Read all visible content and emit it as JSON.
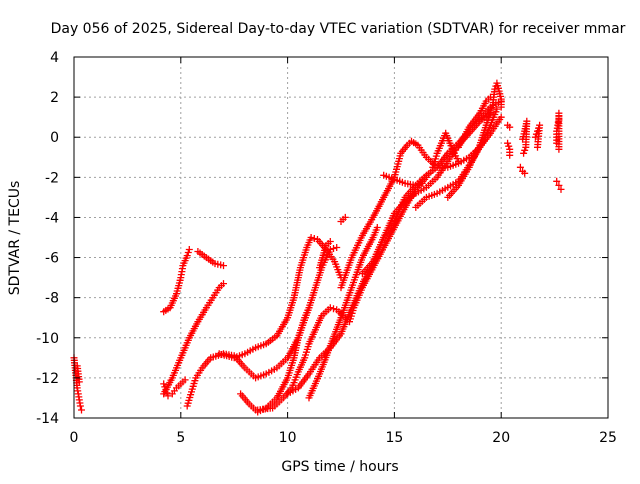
{
  "chart_data": {
    "type": "scatter",
    "title": "Day 056 of 2025, Sidereal Day-to-day VTEC variation (SDTVAR) for receiver mmar",
    "xlabel": "GPS time / hours",
    "ylabel": "SDTVAR / TECUs",
    "xlim": [
      0,
      25
    ],
    "ylim": [
      -14,
      4
    ],
    "xticks": [
      "0",
      "5",
      "10",
      "15",
      "20",
      "25"
    ],
    "yticks": [
      "4",
      "2",
      "0",
      "-2",
      "-4",
      "-6",
      "-8",
      "-10",
      "-12",
      "-14"
    ],
    "grid": true,
    "marker": "plus",
    "color": "#ff0000",
    "series": [
      {
        "points": [
          [
            0.0,
            -11.0
          ],
          [
            0.05,
            -11.5
          ],
          [
            0.1,
            -12.0
          ],
          [
            0.15,
            -12.5
          ],
          [
            0.2,
            -12.8
          ],
          [
            0.25,
            -13.1
          ],
          [
            0.3,
            -13.4
          ],
          [
            0.35,
            -13.6
          ],
          [
            0.15,
            -11.4
          ],
          [
            0.25,
            -12.2
          ]
        ]
      },
      {
        "points": [
          [
            4.2,
            -8.7
          ],
          [
            4.5,
            -8.5
          ],
          [
            4.8,
            -7.8
          ],
          [
            5.0,
            -7.0
          ],
          [
            5.1,
            -6.4
          ],
          [
            5.3,
            -5.9
          ],
          [
            5.4,
            -5.6
          ]
        ]
      },
      {
        "points": [
          [
            4.2,
            -12.3
          ],
          [
            4.3,
            -12.6
          ],
          [
            4.4,
            -12.9
          ],
          [
            4.6,
            -12.8
          ],
          [
            4.8,
            -12.5
          ],
          [
            5.0,
            -12.3
          ],
          [
            5.2,
            -12.1
          ]
        ]
      },
      {
        "points": [
          [
            5.3,
            -13.4
          ],
          [
            5.5,
            -12.7
          ],
          [
            5.7,
            -12.0
          ],
          [
            6.0,
            -11.5
          ],
          [
            6.4,
            -11.0
          ],
          [
            7.0,
            -10.8
          ],
          [
            7.5,
            -10.9
          ],
          [
            8.0,
            -11.5
          ],
          [
            8.5,
            -12.0
          ],
          [
            9.0,
            -11.8
          ],
          [
            9.5,
            -11.5
          ],
          [
            10.0,
            -11.0
          ],
          [
            10.5,
            -10.0
          ],
          [
            11.0,
            -8.5
          ],
          [
            11.5,
            -6.5
          ],
          [
            11.8,
            -5.4
          ],
          [
            12.0,
            -5.2
          ]
        ]
      },
      {
        "points": [
          [
            4.2,
            -12.8
          ],
          [
            4.6,
            -12.0
          ],
          [
            5.0,
            -11.0
          ],
          [
            5.4,
            -10.0
          ],
          [
            5.8,
            -9.2
          ],
          [
            6.2,
            -8.5
          ],
          [
            6.5,
            -8.0
          ],
          [
            6.8,
            -7.5
          ],
          [
            7.0,
            -7.3
          ]
        ]
      },
      {
        "points": [
          [
            5.8,
            -5.7
          ],
          [
            6.2,
            -6.0
          ],
          [
            6.6,
            -6.3
          ],
          [
            7.0,
            -6.4
          ]
        ]
      },
      {
        "points": [
          [
            6.8,
            -10.8
          ],
          [
            7.5,
            -11.0
          ],
          [
            8.0,
            -10.8
          ],
          [
            8.5,
            -10.5
          ],
          [
            9.0,
            -10.3
          ],
          [
            9.5,
            -9.9
          ],
          [
            10.0,
            -9.0
          ],
          [
            10.3,
            -8.0
          ],
          [
            10.6,
            -6.5
          ],
          [
            10.9,
            -5.5
          ],
          [
            11.1,
            -5.0
          ],
          [
            11.4,
            -5.1
          ],
          [
            11.8,
            -5.6
          ],
          [
            12.2,
            -6.2
          ],
          [
            12.5,
            -7.0
          ]
        ]
      },
      {
        "points": [
          [
            7.8,
            -12.8
          ],
          [
            8.2,
            -13.3
          ],
          [
            8.6,
            -13.7
          ],
          [
            9.0,
            -13.5
          ],
          [
            9.5,
            -13.0
          ],
          [
            10.0,
            -12.0
          ],
          [
            10.3,
            -11.0
          ],
          [
            10.5,
            -10.0
          ],
          [
            10.8,
            -9.0
          ],
          [
            11.0,
            -8.5
          ],
          [
            11.3,
            -7.5
          ],
          [
            11.6,
            -6.5
          ],
          [
            12.0,
            -5.6
          ],
          [
            12.3,
            -5.5
          ]
        ]
      },
      {
        "points": [
          [
            8.6,
            -13.6
          ],
          [
            9.3,
            -13.5
          ],
          [
            9.8,
            -13.0
          ],
          [
            10.2,
            -12.5
          ],
          [
            10.5,
            -11.7
          ],
          [
            10.8,
            -11.0
          ],
          [
            11.0,
            -10.3
          ],
          [
            11.3,
            -9.6
          ],
          [
            11.6,
            -8.9
          ],
          [
            12.0,
            -8.5
          ],
          [
            12.3,
            -8.6
          ],
          [
            12.6,
            -8.9
          ],
          [
            12.9,
            -9.2
          ],
          [
            13.1,
            -8.5
          ],
          [
            13.5,
            -7.5
          ],
          [
            14.0,
            -6.5
          ],
          [
            14.5,
            -5.5
          ],
          [
            15.0,
            -4.5
          ],
          [
            15.5,
            -3.5
          ],
          [
            16.0,
            -2.6
          ],
          [
            16.5,
            -2.0
          ]
        ]
      },
      {
        "points": [
          [
            10.0,
            -12.8
          ],
          [
            10.5,
            -12.5
          ],
          [
            11.0,
            -11.8
          ],
          [
            11.5,
            -11.0
          ],
          [
            12.0,
            -10.5
          ],
          [
            12.5,
            -9.8
          ],
          [
            13.0,
            -8.5
          ],
          [
            13.5,
            -7.3
          ],
          [
            14.0,
            -6.3
          ],
          [
            14.5,
            -5.0
          ],
          [
            15.0,
            -4.2
          ],
          [
            15.5,
            -3.0
          ],
          [
            16.0,
            -2.4
          ],
          [
            16.5,
            -1.9
          ],
          [
            17.0,
            -1.5
          ],
          [
            17.5,
            -0.8
          ],
          [
            18.0,
            -0.3
          ],
          [
            18.5,
            0.3
          ],
          [
            19.0,
            0.9
          ],
          [
            19.5,
            1.5
          ],
          [
            20.0,
            1.8
          ]
        ]
      },
      {
        "points": [
          [
            11.0,
            -13.0
          ],
          [
            11.5,
            -11.8
          ],
          [
            12.0,
            -10.4
          ],
          [
            12.5,
            -9.0
          ],
          [
            13.0,
            -7.5
          ],
          [
            13.3,
            -6.6
          ],
          [
            13.5,
            -6.0
          ],
          [
            14.0,
            -5.0
          ],
          [
            14.2,
            -4.5
          ]
        ]
      },
      {
        "points": [
          [
            12.5,
            -4.2
          ],
          [
            12.7,
            -4.0
          ]
        ]
      },
      {
        "points": [
          [
            12.5,
            -7.5
          ],
          [
            13.0,
            -6.0
          ],
          [
            13.5,
            -4.9
          ],
          [
            14.0,
            -4.0
          ],
          [
            14.5,
            -3.0
          ],
          [
            15.0,
            -2.0
          ],
          [
            15.3,
            -0.8
          ],
          [
            15.6,
            -0.4
          ],
          [
            15.8,
            -0.2
          ],
          [
            16.1,
            -0.4
          ],
          [
            16.5,
            -1.0
          ],
          [
            17.0,
            -1.5
          ],
          [
            17.5,
            -1.5
          ],
          [
            18.0,
            -1.3
          ],
          [
            18.5,
            -1.0
          ],
          [
            19.0,
            -0.5
          ],
          [
            19.5,
            0.2
          ],
          [
            20.0,
            1.0
          ]
        ]
      },
      {
        "points": [
          [
            14.5,
            -1.9
          ],
          [
            15.0,
            -2.1
          ],
          [
            15.5,
            -2.3
          ],
          [
            16.0,
            -2.4
          ],
          [
            16.3,
            -2.3
          ]
        ]
      },
      {
        "points": [
          [
            13.5,
            -6.8
          ],
          [
            14.0,
            -6.2
          ],
          [
            14.5,
            -5.0
          ],
          [
            15.0,
            -3.8
          ],
          [
            15.5,
            -3.2
          ],
          [
            16.0,
            -2.8
          ],
          [
            16.5,
            -2.5
          ],
          [
            17.0,
            -2.0
          ],
          [
            17.5,
            -1.2
          ],
          [
            18.0,
            -0.4
          ],
          [
            18.5,
            0.2
          ],
          [
            19.0,
            0.8
          ],
          [
            19.5,
            1.2
          ]
        ]
      },
      {
        "points": [
          [
            16.0,
            -3.5
          ],
          [
            16.5,
            -3.0
          ],
          [
            17.0,
            -2.8
          ],
          [
            17.5,
            -2.5
          ],
          [
            18.0,
            -2.2
          ],
          [
            18.5,
            -1.4
          ],
          [
            19.0,
            -0.5
          ],
          [
            19.5,
            0.6
          ],
          [
            19.8,
            1.4
          ]
        ]
      },
      {
        "points": [
          [
            16.8,
            -1.5
          ],
          [
            17.0,
            -0.8
          ],
          [
            17.2,
            -0.3
          ],
          [
            17.4,
            0.2
          ],
          [
            17.6,
            -0.3
          ],
          [
            17.8,
            -0.8
          ],
          [
            18.0,
            -1.2
          ]
        ]
      },
      {
        "points": [
          [
            17.5,
            -3.0
          ],
          [
            18.0,
            -2.4
          ],
          [
            18.5,
            -1.5
          ],
          [
            19.0,
            -0.4
          ],
          [
            19.3,
            0.6
          ],
          [
            19.6,
            1.6
          ],
          [
            19.7,
            2.4
          ],
          [
            19.8,
            2.7
          ],
          [
            19.9,
            2.3
          ],
          [
            20.0,
            1.9
          ],
          [
            20.0,
            1.5
          ]
        ]
      },
      {
        "points": [
          [
            18.0,
            -0.5
          ],
          [
            18.5,
            0.5
          ],
          [
            19.0,
            1.2
          ],
          [
            19.3,
            1.8
          ],
          [
            19.5,
            2.0
          ]
        ]
      },
      {
        "points": [
          [
            20.3,
            0.6
          ],
          [
            20.4,
            0.5
          ]
        ]
      },
      {
        "points": [
          [
            20.3,
            -0.3
          ],
          [
            20.4,
            -0.6
          ],
          [
            20.4,
            -0.9
          ]
        ]
      },
      {
        "points": [
          [
            21.0,
            -0.1
          ],
          [
            21.1,
            0.3
          ],
          [
            21.2,
            0.8
          ],
          [
            21.15,
            -0.5
          ],
          [
            21.05,
            -0.8
          ]
        ]
      },
      {
        "points": [
          [
            20.9,
            -1.5
          ],
          [
            21.0,
            -1.7
          ],
          [
            21.1,
            -1.8
          ]
        ]
      },
      {
        "points": [
          [
            21.6,
            0.0
          ],
          [
            21.7,
            0.3
          ],
          [
            21.8,
            0.6
          ],
          [
            21.7,
            -0.5
          ]
        ]
      },
      {
        "points": [
          [
            22.6,
            -0.3
          ],
          [
            22.6,
            0.3
          ],
          [
            22.7,
            0.9
          ],
          [
            22.7,
            1.2
          ],
          [
            22.7,
            -0.6
          ]
        ]
      },
      {
        "points": [
          [
            22.6,
            -2.2
          ],
          [
            22.7,
            -2.4
          ],
          [
            22.8,
            -2.6
          ]
        ]
      }
    ]
  }
}
